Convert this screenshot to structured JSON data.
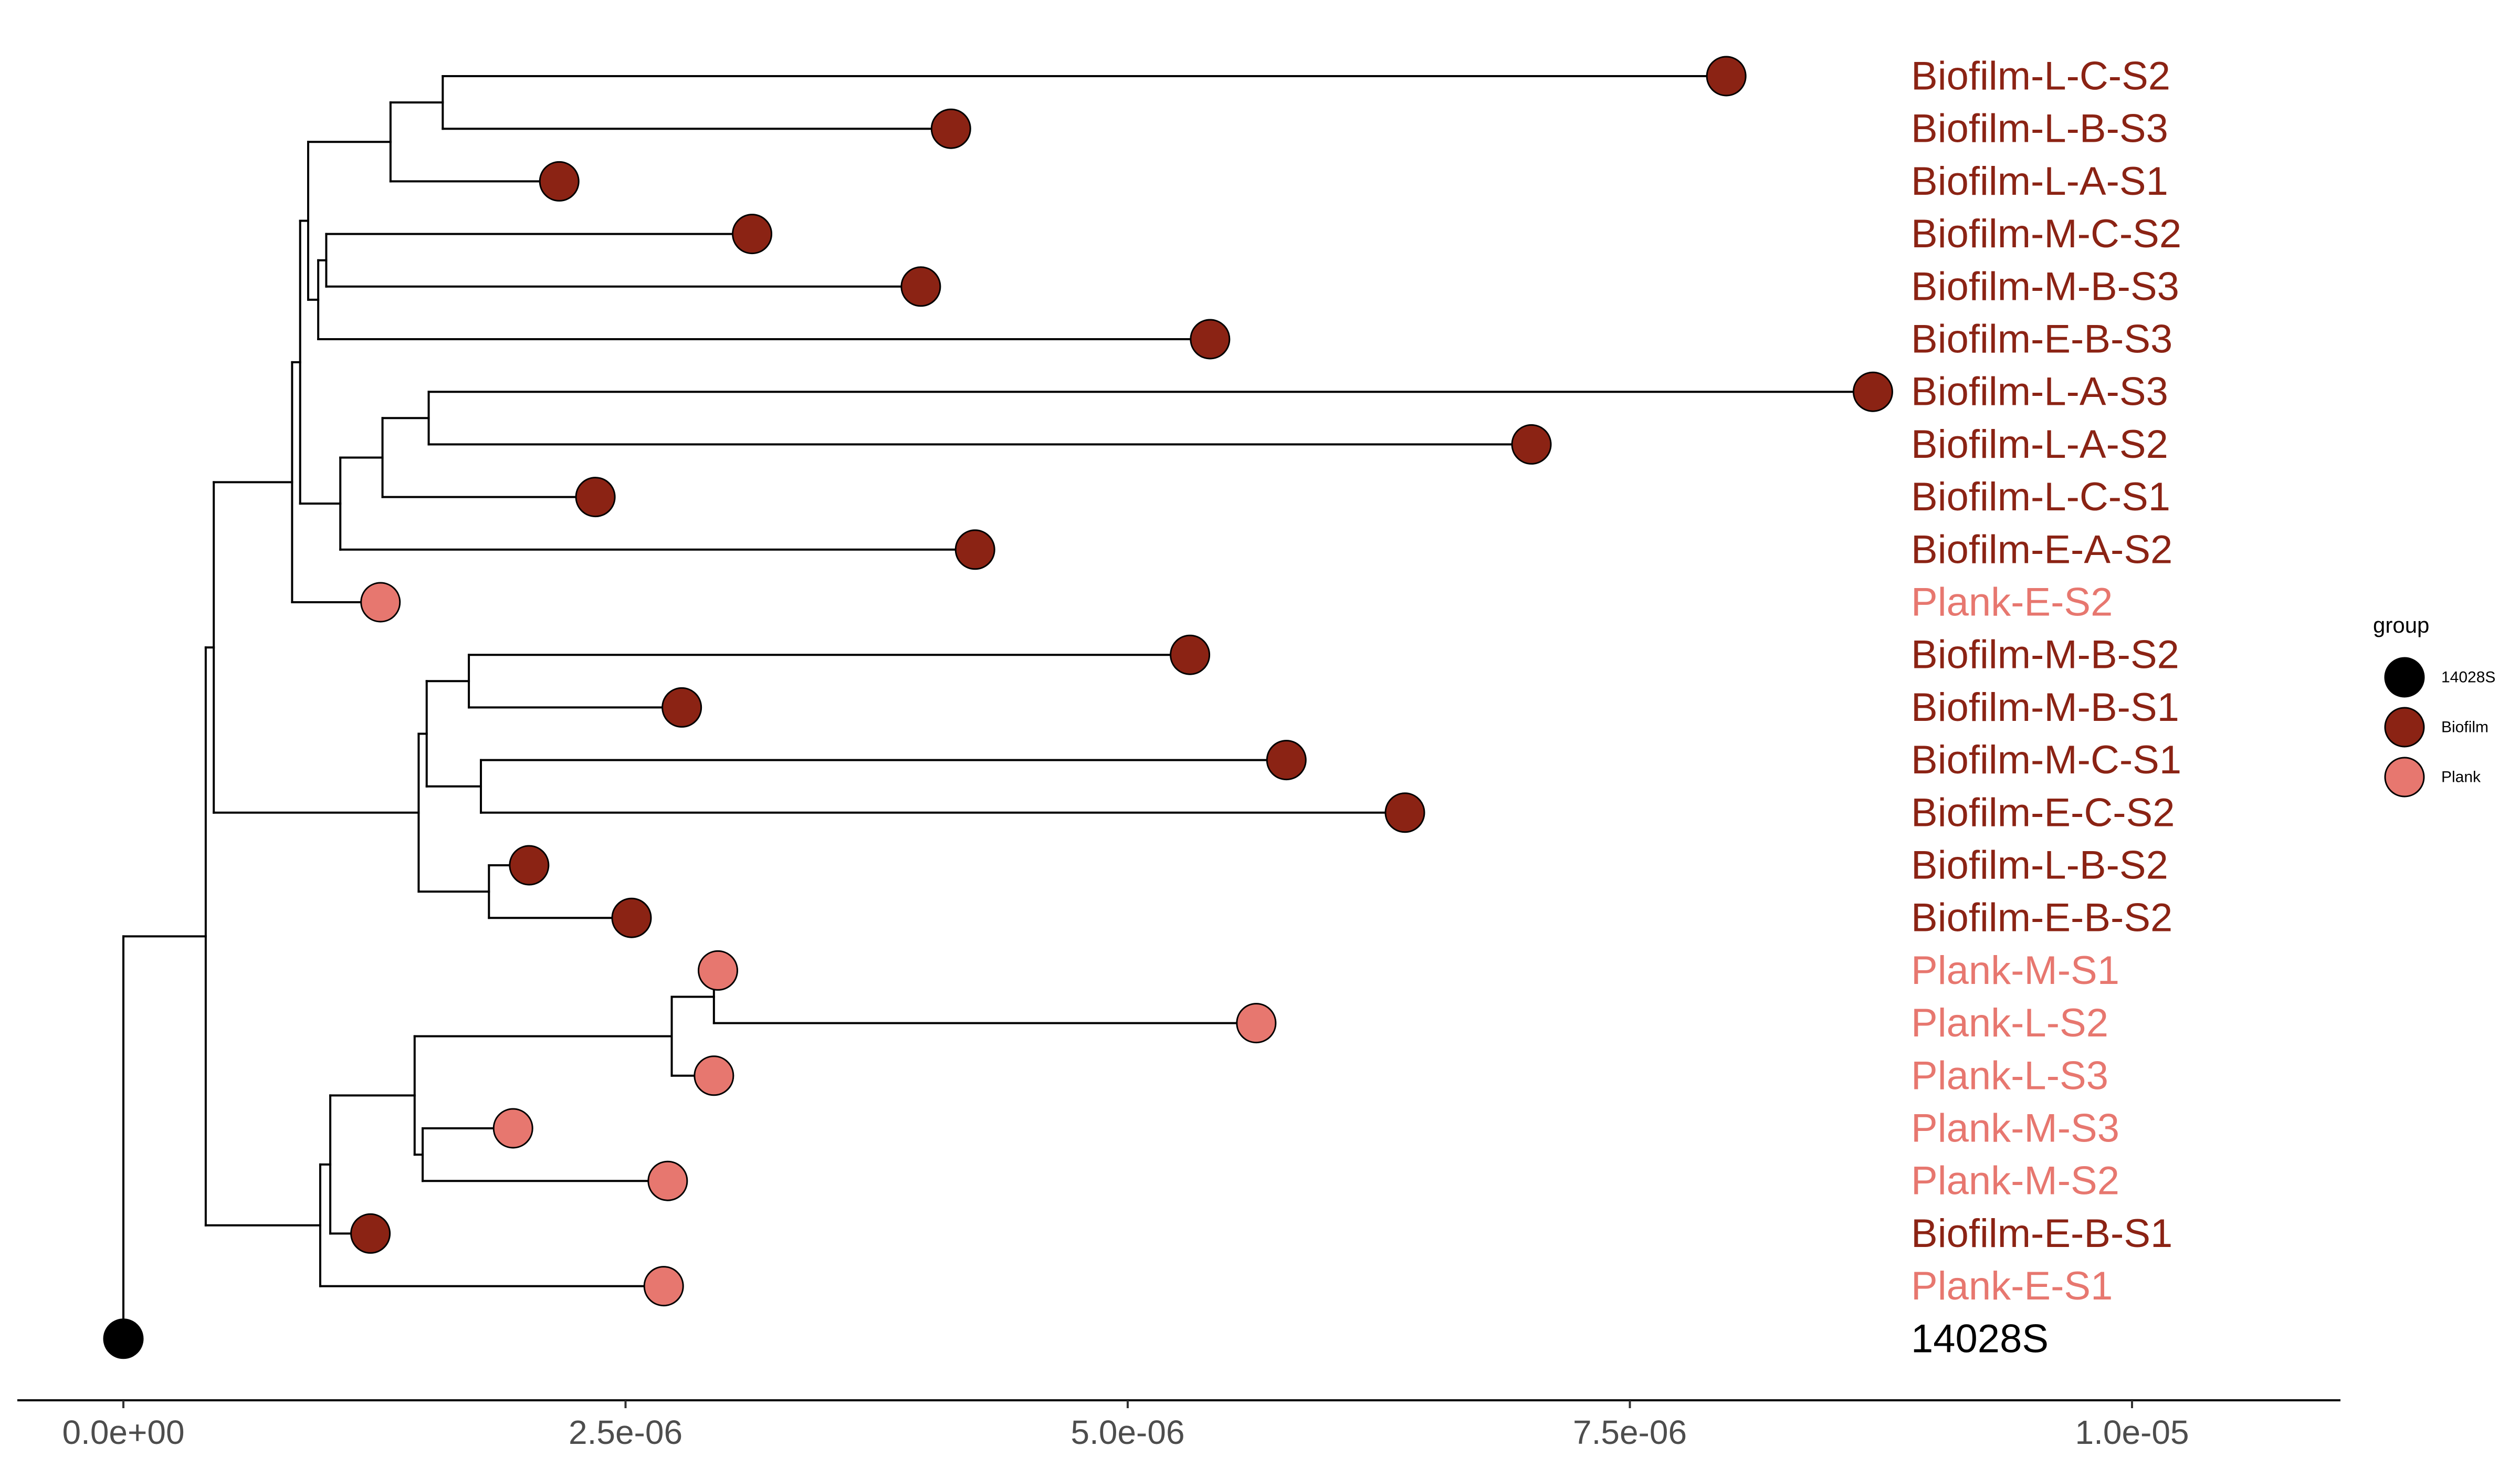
{
  "colors": {
    "14028S": "#000000",
    "Biofilm": "#8B2314",
    "Plank": "#E7776F"
  },
  "legend": {
    "title": "group",
    "entries": [
      {
        "key": "14028S",
        "label": "14028S"
      },
      {
        "key": "Biofilm",
        "label": "Biofilm"
      },
      {
        "key": "Plank",
        "label": "Plank"
      }
    ]
  },
  "axis": {
    "xlim": [
      -2.6e-07,
      1.1e-05
    ],
    "ticks": [
      {
        "value": 0,
        "label": "0.0e+00"
      },
      {
        "value": 2.5e-06,
        "label": "2.5e-06"
      },
      {
        "value": 5e-06,
        "label": "5.0e-06"
      },
      {
        "value": 7.5e-06,
        "label": "7.5e-06"
      },
      {
        "value": 1e-05,
        "label": "1.0e-05"
      }
    ]
  },
  "chart_data": {
    "type": "phylogenetic_tree",
    "tips": [
      {
        "label": "Biofilm-L-C-S2",
        "group": "Biofilm",
        "x": 7.98e-06
      },
      {
        "label": "Biofilm-L-B-S3",
        "group": "Biofilm",
        "x": 4.12e-06
      },
      {
        "label": "Biofilm-L-A-S1",
        "group": "Biofilm",
        "x": 2.17e-06
      },
      {
        "label": "Biofilm-M-C-S2",
        "group": "Biofilm",
        "x": 3.13e-06
      },
      {
        "label": "Biofilm-M-B-S3",
        "group": "Biofilm",
        "x": 3.97e-06
      },
      {
        "label": "Biofilm-E-B-S3",
        "group": "Biofilm",
        "x": 5.41e-06
      },
      {
        "label": "Biofilm-L-A-S3",
        "group": "Biofilm",
        "x": 8.71e-06
      },
      {
        "label": "Biofilm-L-A-S2",
        "group": "Biofilm",
        "x": 7.01e-06
      },
      {
        "label": "Biofilm-L-C-S1",
        "group": "Biofilm",
        "x": 2.35e-06
      },
      {
        "label": "Biofilm-E-A-S2",
        "group": "Biofilm",
        "x": 4.24e-06
      },
      {
        "label": "Plank-E-S2",
        "group": "Plank",
        "x": 1.28e-06
      },
      {
        "label": "Biofilm-M-B-S2",
        "group": "Biofilm",
        "x": 5.31e-06
      },
      {
        "label": "Biofilm-M-B-S1",
        "group": "Biofilm",
        "x": 2.78e-06
      },
      {
        "label": "Biofilm-M-C-S1",
        "group": "Biofilm",
        "x": 5.79e-06
      },
      {
        "label": "Biofilm-E-C-S2",
        "group": "Biofilm",
        "x": 6.38e-06
      },
      {
        "label": "Biofilm-L-B-S2",
        "group": "Biofilm",
        "x": 2.02e-06
      },
      {
        "label": "Biofilm-E-B-S2",
        "group": "Biofilm",
        "x": 2.53e-06
      },
      {
        "label": "Plank-M-S1",
        "group": "Plank",
        "x": 2.96e-06
      },
      {
        "label": "Plank-L-S2",
        "group": "Plank",
        "x": 5.64e-06
      },
      {
        "label": "Plank-L-S3",
        "group": "Plank",
        "x": 2.94e-06
      },
      {
        "label": "Plank-M-S3",
        "group": "Plank",
        "x": 1.94e-06
      },
      {
        "label": "Plank-M-S2",
        "group": "Plank",
        "x": 2.71e-06
      },
      {
        "label": "Biofilm-E-B-S1",
        "group": "Biofilm",
        "x": 1.23e-06
      },
      {
        "label": "Plank-E-S1",
        "group": "Plank",
        "x": 2.69e-06
      },
      {
        "label": "14028S",
        "group": "14028S",
        "x": 0
      }
    ],
    "nodes": [
      {
        "id": "n_lcs2_lbs3",
        "x": 1.59e-06,
        "children": [
          "Biofilm-L-C-S2",
          "Biofilm-L-B-S3"
        ]
      },
      {
        "id": "n_la",
        "x": 1.33e-06,
        "children": [
          "n_lcs2_lbs3",
          "Biofilm-L-A-S1"
        ]
      },
      {
        "id": "n_mc_mb",
        "x": 1.01e-06,
        "children": [
          "Biofilm-M-C-S2",
          "Biofilm-M-B-S3"
        ]
      },
      {
        "id": "n_meb",
        "x": 9.7e-07,
        "children": [
          "n_mc_mb",
          "Biofilm-E-B-S3"
        ]
      },
      {
        "id": "n_a1",
        "x": 9.2e-07,
        "children": [
          "n_la",
          "n_meb"
        ]
      },
      {
        "id": "n_la3_la2",
        "x": 1.52e-06,
        "children": [
          "Biofilm-L-A-S3",
          "Biofilm-L-A-S2"
        ]
      },
      {
        "id": "n_lc1",
        "x": 1.29e-06,
        "children": [
          "n_la3_la2",
          "Biofilm-L-C-S1"
        ]
      },
      {
        "id": "n_ea2",
        "x": 1.08e-06,
        "children": [
          "n_lc1",
          "Biofilm-E-A-S2"
        ]
      },
      {
        "id": "n_bio_top",
        "x": 8.8e-07,
        "children": [
          "n_a1",
          "n_ea2"
        ]
      },
      {
        "id": "n_top",
        "x": 8.4e-07,
        "children": [
          "n_bio_top",
          "Plank-E-S2"
        ]
      },
      {
        "id": "n_mb2_mb1",
        "x": 1.72e-06,
        "children": [
          "Biofilm-M-B-S2",
          "Biofilm-M-B-S1"
        ]
      },
      {
        "id": "n_mc1_ec2",
        "x": 1.78e-06,
        "children": [
          "Biofilm-M-C-S1",
          "Biofilm-E-C-S2"
        ]
      },
      {
        "id": "n_mid1",
        "x": 1.51e-06,
        "children": [
          "n_mb2_mb1",
          "n_mc1_ec2"
        ]
      },
      {
        "id": "n_lb2_eb2",
        "x": 1.82e-06,
        "children": [
          "Biofilm-L-B-S2",
          "Biofilm-E-B-S2"
        ]
      },
      {
        "id": "n_mid",
        "x": 1.47e-06,
        "children": [
          "n_mid1",
          "n_lb2_eb2"
        ]
      },
      {
        "id": "n_upper",
        "x": 4.5e-07,
        "children": [
          "n_top",
          "n_mid"
        ]
      },
      {
        "id": "n_ls2_ls3",
        "x": 2.73e-06,
        "children": [
          "n_ms1_ls2",
          "Plank-L-S3"
        ]
      },
      {
        "id": "n_ms1_ls2",
        "x": 2.94e-06,
        "children": [
          "Plank-M-S1",
          "Plank-L-S2"
        ]
      },
      {
        "id": "n_ms3_ms2",
        "x": 1.49e-06,
        "children": [
          "Plank-M-S3",
          "Plank-M-S2"
        ]
      },
      {
        "id": "n_plank",
        "x": 1.45e-06,
        "children": [
          "n_ls2_ls3",
          "n_ms3_ms2"
        ]
      },
      {
        "id": "n_pl_eb1",
        "x": 1.03e-06,
        "children": [
          "n_plank",
          "Biofilm-E-B-S1"
        ]
      },
      {
        "id": "n_lower",
        "x": 9.8e-07,
        "children": [
          "n_pl_eb1",
          "Plank-E-S1"
        ]
      },
      {
        "id": "n_main",
        "x": 4.1e-07,
        "children": [
          "n_upper",
          "n_lower"
        ]
      },
      {
        "id": "root",
        "x": 0,
        "children": [
          "n_main",
          "14028S"
        ]
      }
    ]
  }
}
